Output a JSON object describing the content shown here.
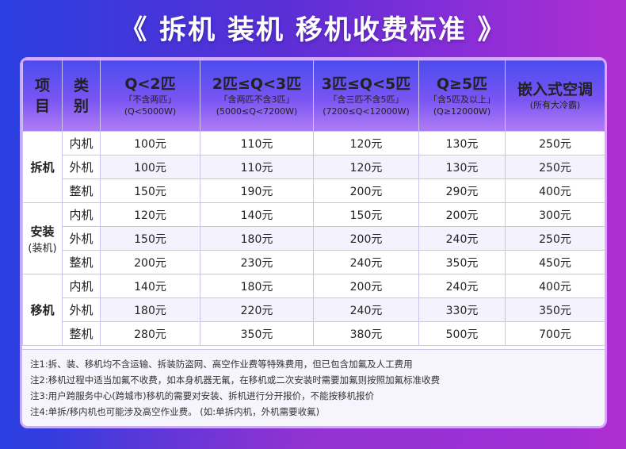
{
  "title": "《 拆机 装机 移机收费标准 》",
  "colors": {
    "accent": "#5a4df2",
    "header_grad_end": "#b07df5",
    "border": "#c9c3ee"
  },
  "table": {
    "header": {
      "xiangmu": [
        "项",
        "目"
      ],
      "leibie": [
        "类",
        "别"
      ],
      "columns": [
        {
          "main": "Q<2匹",
          "sub1": "「不含两匹」",
          "sub2": "(Q<5000W)"
        },
        {
          "main": "2匹≤Q<3匹",
          "sub1": "「含两匹不含3匹」",
          "sub2": "(5000≤Q<7200W)"
        },
        {
          "main": "3匹≤Q<5匹",
          "sub1": "「含三匹不含5匹」",
          "sub2": "(7200≤Q<12000W)"
        },
        {
          "main": "Q≥5匹",
          "sub1": "「含5匹及以上」",
          "sub2": "(Q≥12000W)"
        },
        {
          "main": "嵌入式空调",
          "sub1": "(所有大冷霸)",
          "sub2": ""
        }
      ]
    },
    "groups": [
      {
        "name": "拆机",
        "sub": "",
        "rows": [
          {
            "type": "内机",
            "values": [
              "100元",
              "110元",
              "120元",
              "130元",
              "250元"
            ]
          },
          {
            "type": "外机",
            "values": [
              "100元",
              "110元",
              "120元",
              "130元",
              "250元"
            ]
          },
          {
            "type": "整机",
            "values": [
              "150元",
              "190元",
              "200元",
              "290元",
              "400元"
            ]
          }
        ]
      },
      {
        "name": "安装",
        "sub": "(装机)",
        "rows": [
          {
            "type": "内机",
            "values": [
              "120元",
              "140元",
              "150元",
              "200元",
              "300元"
            ]
          },
          {
            "type": "外机",
            "values": [
              "150元",
              "180元",
              "200元",
              "240元",
              "250元"
            ]
          },
          {
            "type": "整机",
            "values": [
              "200元",
              "230元",
              "240元",
              "350元",
              "450元"
            ]
          }
        ]
      },
      {
        "name": "移机",
        "sub": "",
        "rows": [
          {
            "type": "内机",
            "values": [
              "140元",
              "180元",
              "200元",
              "240元",
              "400元"
            ]
          },
          {
            "type": "外机",
            "values": [
              "180元",
              "220元",
              "240元",
              "330元",
              "350元"
            ]
          },
          {
            "type": "整机",
            "values": [
              "280元",
              "350元",
              "380元",
              "500元",
              "700元"
            ]
          }
        ]
      }
    ]
  },
  "notes": [
    "注1:拆、装、移机均不含运输、拆装防盗网、高空作业费等特殊费用，但已包含加氟及人工费用",
    "注2:移机过程中适当加氟不收费，如本身机器无氟，在移机或二次安装时需要加氟则按照加氟标准收费",
    "注3:用户跨服务中心(跨城市)移机的需要对安装、拆机进行分开报价，不能按移机报价",
    "注4:单拆/移内机也可能涉及高空作业费。 (如:单拆内机，外机需要收氟)"
  ]
}
